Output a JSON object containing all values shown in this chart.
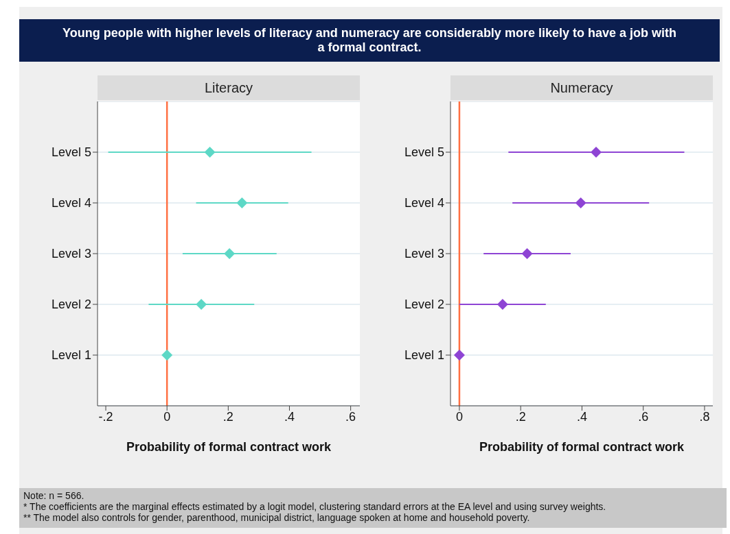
{
  "chart_data": [
    {
      "type": "scatter",
      "orientation": "horizontal",
      "title": "Young people with higher levels of literacy and numeracy are considerably more likely to have a job with a formal contract.",
      "subtitle": "Literacy",
      "categories": [
        "Level 5",
        "Level 4",
        "Level 3",
        "Level 2",
        "Level 1"
      ],
      "values": [
        0.14,
        0.245,
        0.204,
        0.112,
        0
      ],
      "errors": [
        [
          -0.192,
          0.472
        ],
        [
          0.095,
          0.396
        ],
        [
          0.051,
          0.358
        ],
        [
          -0.06,
          0.285
        ],
        null
      ],
      "color": "#5dd8c6",
      "marker": "diamond",
      "xlim": [
        -0.227,
        0.63
      ],
      "xticks": [
        {
          "value": -0.2,
          "label": "-.2"
        },
        0,
        {
          "value": 0.2,
          "label": ".2"
        },
        {
          "value": 0.4,
          "label": ".4"
        },
        {
          "value": 0.6,
          "label": ".6"
        }
      ],
      "xlabel": "Probability of formal contract work",
      "ref_lines": [
        {
          "axis": "x",
          "value": 0,
          "color": "#ff7043"
        }
      ],
      "grid": "y"
    },
    {
      "type": "scatter",
      "orientation": "horizontal",
      "subtitle": "Numeracy",
      "categories": [
        "Level 5",
        "Level 4",
        "Level 3",
        "Level 2",
        "Level 1"
      ],
      "values": [
        0.446,
        0.396,
        0.221,
        0.141,
        0
      ],
      "errors": [
        [
          0.16,
          0.734
        ],
        [
          0.173,
          0.619
        ],
        [
          0.079,
          0.363
        ],
        [
          0,
          0.282
        ],
        null
      ],
      "color": "#8e44d4",
      "marker": "diamond",
      "xlim": [
        -0.029,
        0.827
      ],
      "xticks": [
        0,
        {
          "value": 0.2,
          "label": ".2"
        },
        {
          "value": 0.4,
          "label": ".4"
        },
        {
          "value": 0.6,
          "label": ".6"
        },
        {
          "value": 0.8,
          "label": ".8"
        }
      ],
      "xlabel": "Probability of formal contract work",
      "ref_lines": [
        {
          "axis": "x",
          "value": 0,
          "color": "#ff7043"
        }
      ],
      "grid": "y",
      "annotations": [
        "Note: n = 566.",
        "* The coefficients are the marginal effects estimated by a logit model, clustering standard errors at the EA level and using survey weights.",
        "** The model also controls for gender, parenthood, municipal district, language spoken at home and household poverty."
      ]
    }
  ]
}
